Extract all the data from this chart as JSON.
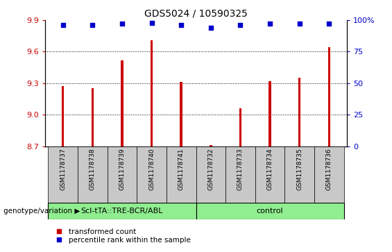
{
  "title": "GDS5024 / 10590325",
  "samples": [
    "GSM1178737",
    "GSM1178738",
    "GSM1178739",
    "GSM1178740",
    "GSM1178741",
    "GSM1178732",
    "GSM1178733",
    "GSM1178734",
    "GSM1178735",
    "GSM1178736"
  ],
  "bar_values": [
    9.27,
    9.25,
    9.52,
    9.71,
    9.31,
    8.71,
    9.06,
    9.32,
    9.35,
    9.64
  ],
  "percentile_values": [
    96,
    96,
    97,
    98,
    96,
    94,
    96,
    97,
    97,
    97
  ],
  "bar_color": "#CC0000",
  "percentile_color": "#0000CC",
  "ylim_left": [
    8.7,
    9.9
  ],
  "ylim_right": [
    0,
    100
  ],
  "yticks_left": [
    8.7,
    9.0,
    9.3,
    9.6,
    9.9
  ],
  "yticks_right": [
    0,
    25,
    50,
    75,
    100
  ],
  "ytick_right_labels": [
    "0",
    "25",
    "50",
    "75",
    "100%"
  ],
  "grid_lines": [
    9.0,
    9.3,
    9.6
  ],
  "group1_label": "Scl-tTA::TRE-BCR/ABL",
  "group2_label": "control",
  "group1_color": "#90EE90",
  "group2_color": "#90EE90",
  "group1_count": 5,
  "group2_count": 5,
  "genotype_label": "genotype/variation",
  "legend_bar_label": "transformed count",
  "legend_pct_label": "percentile rank within the sample",
  "bar_width": 0.08,
  "left_tick_color": "#CC0000",
  "right_tick_color": "#0000CC",
  "bottom_box_color": "#C8C8C8"
}
